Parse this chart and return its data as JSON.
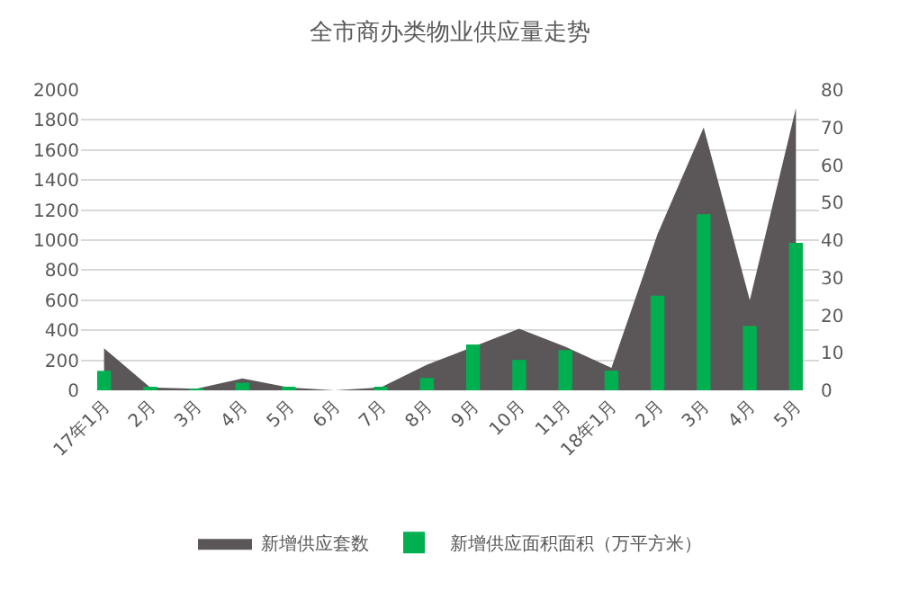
{
  "chart_data": {
    "type": "area",
    "title": "全市商办类物业供应量走势",
    "categories": [
      "17年1月",
      "2月",
      "3月",
      "4月",
      "5月",
      "6月",
      "7月",
      "8月",
      "9月",
      "10月",
      "11月",
      "18年1月",
      "2月",
      "3月",
      "4月",
      "5月"
    ],
    "series": [
      {
        "name": "新增供应套数",
        "color": "#5b5758",
        "values": [
          280,
          20,
          10,
          80,
          20,
          0,
          20,
          170,
          null,
          410,
          290,
          150,
          1040,
          1750,
          600,
          1880
        ]
      },
      {
        "name": "新增供应面积面积（万平方米）",
        "type": "bar",
        "axis": "y2",
        "color": "#00b050",
        "values": [
          5.2,
          0.5,
          0.3,
          2,
          0.5,
          0,
          0.5,
          3.3,
          12.2,
          8.1,
          10.7,
          5.2,
          25.2,
          46.9,
          17.1,
          39.3
        ]
      }
    ],
    "ylim": [
      0,
      2000
    ],
    "yticks": [
      0,
      200,
      400,
      600,
      800,
      1000,
      1200,
      1400,
      1600,
      1800,
      2000
    ],
    "y2lim": [
      0,
      80
    ],
    "y2ticks": [
      0,
      10,
      20,
      30,
      40,
      50,
      60,
      70,
      80
    ],
    "grid": "y",
    "legend": "bottom"
  }
}
